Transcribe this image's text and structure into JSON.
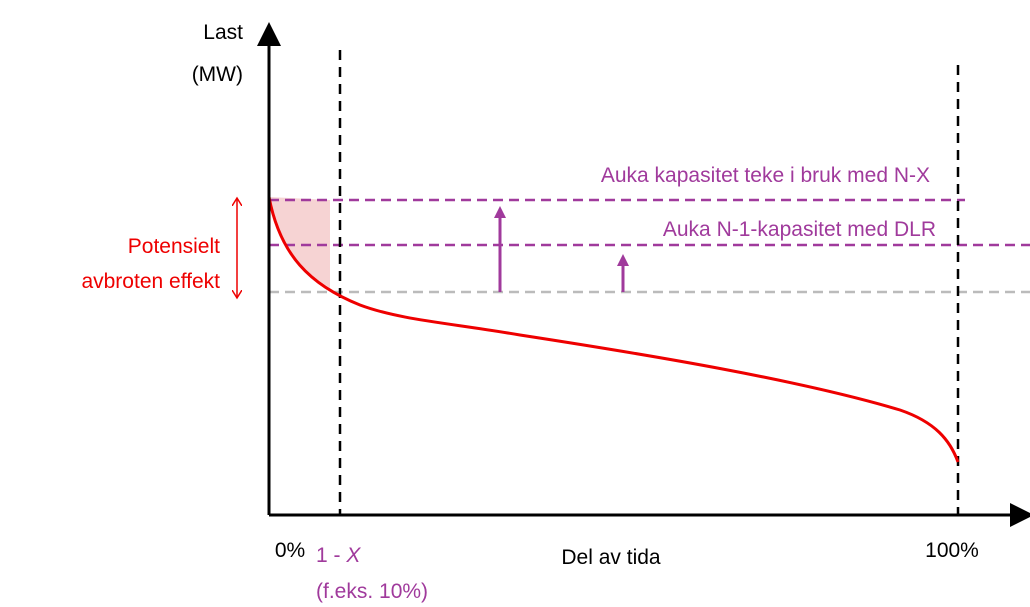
{
  "axes": {
    "y_label": [
      "Last",
      "(MW)"
    ],
    "x_label": "Del av tida",
    "x_start": "0%",
    "x_end": "100%"
  },
  "marker": {
    "label_parts": [
      "1 - ",
      "X"
    ],
    "note": "(f.eks. 10%)"
  },
  "left_note": [
    "Potensielt",
    "avbroten effekt"
  ],
  "lines": {
    "upper": "Auka kapasitet teke i bruk med N-X",
    "lower": "Auka N-1-kapasitet med DLR"
  }
}
